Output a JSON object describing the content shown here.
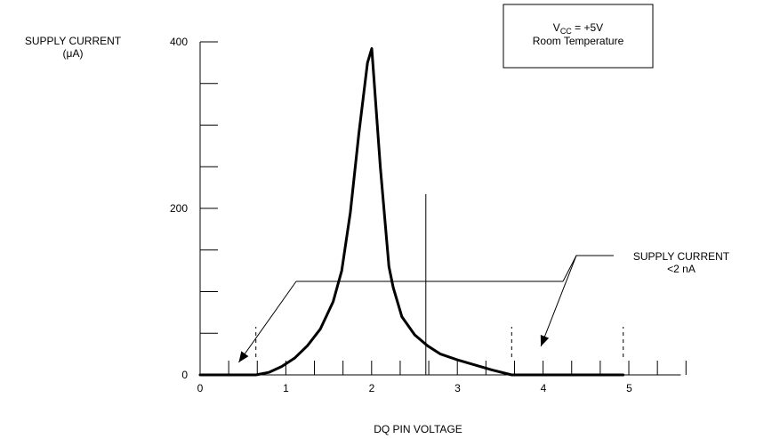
{
  "chart_data": {
    "type": "line",
    "ylabel_line1": "SUPPLY CURRENT",
    "ylabel_line2": "(μA)",
    "xlabel": "DQ PIN VOLTAGE",
    "xlim": [
      0,
      5.6
    ],
    "ylim": [
      0,
      400
    ],
    "x_ticks": [
      0,
      1,
      2,
      3,
      4,
      5
    ],
    "y_ticks": [
      0,
      200,
      400
    ],
    "x_minor_step": 0.333,
    "y_minor_step": 50,
    "legend_box": {
      "vcc_prefix": "V",
      "vcc_sub": "CC",
      "vcc_suffix": " = +5V",
      "line2": "Room Temperature"
    },
    "annotation": {
      "line1": "SUPPLY CURRENT",
      "line2": "<2 nA",
      "arrow_targets_x": [
        0.45,
        3.97
      ]
    },
    "vertical_markers_x": [
      0.65,
      2.63,
      3.63,
      4.93
    ],
    "series": [
      {
        "x": [
          0,
          0.65,
          0.8,
          0.95,
          1.1,
          1.25,
          1.4,
          1.55,
          1.65,
          1.75,
          1.85,
          1.95,
          2.0,
          2.1,
          2.2,
          2.25,
          2.35,
          2.5,
          2.65,
          2.8,
          3.0,
          3.2,
          3.4,
          3.63,
          4.93
        ],
        "y": [
          0,
          0,
          3,
          10,
          20,
          35,
          55,
          88,
          125,
          195,
          290,
          375,
          392,
          250,
          130,
          105,
          70,
          48,
          35,
          25,
          18,
          12,
          6,
          0,
          0
        ]
      }
    ]
  }
}
